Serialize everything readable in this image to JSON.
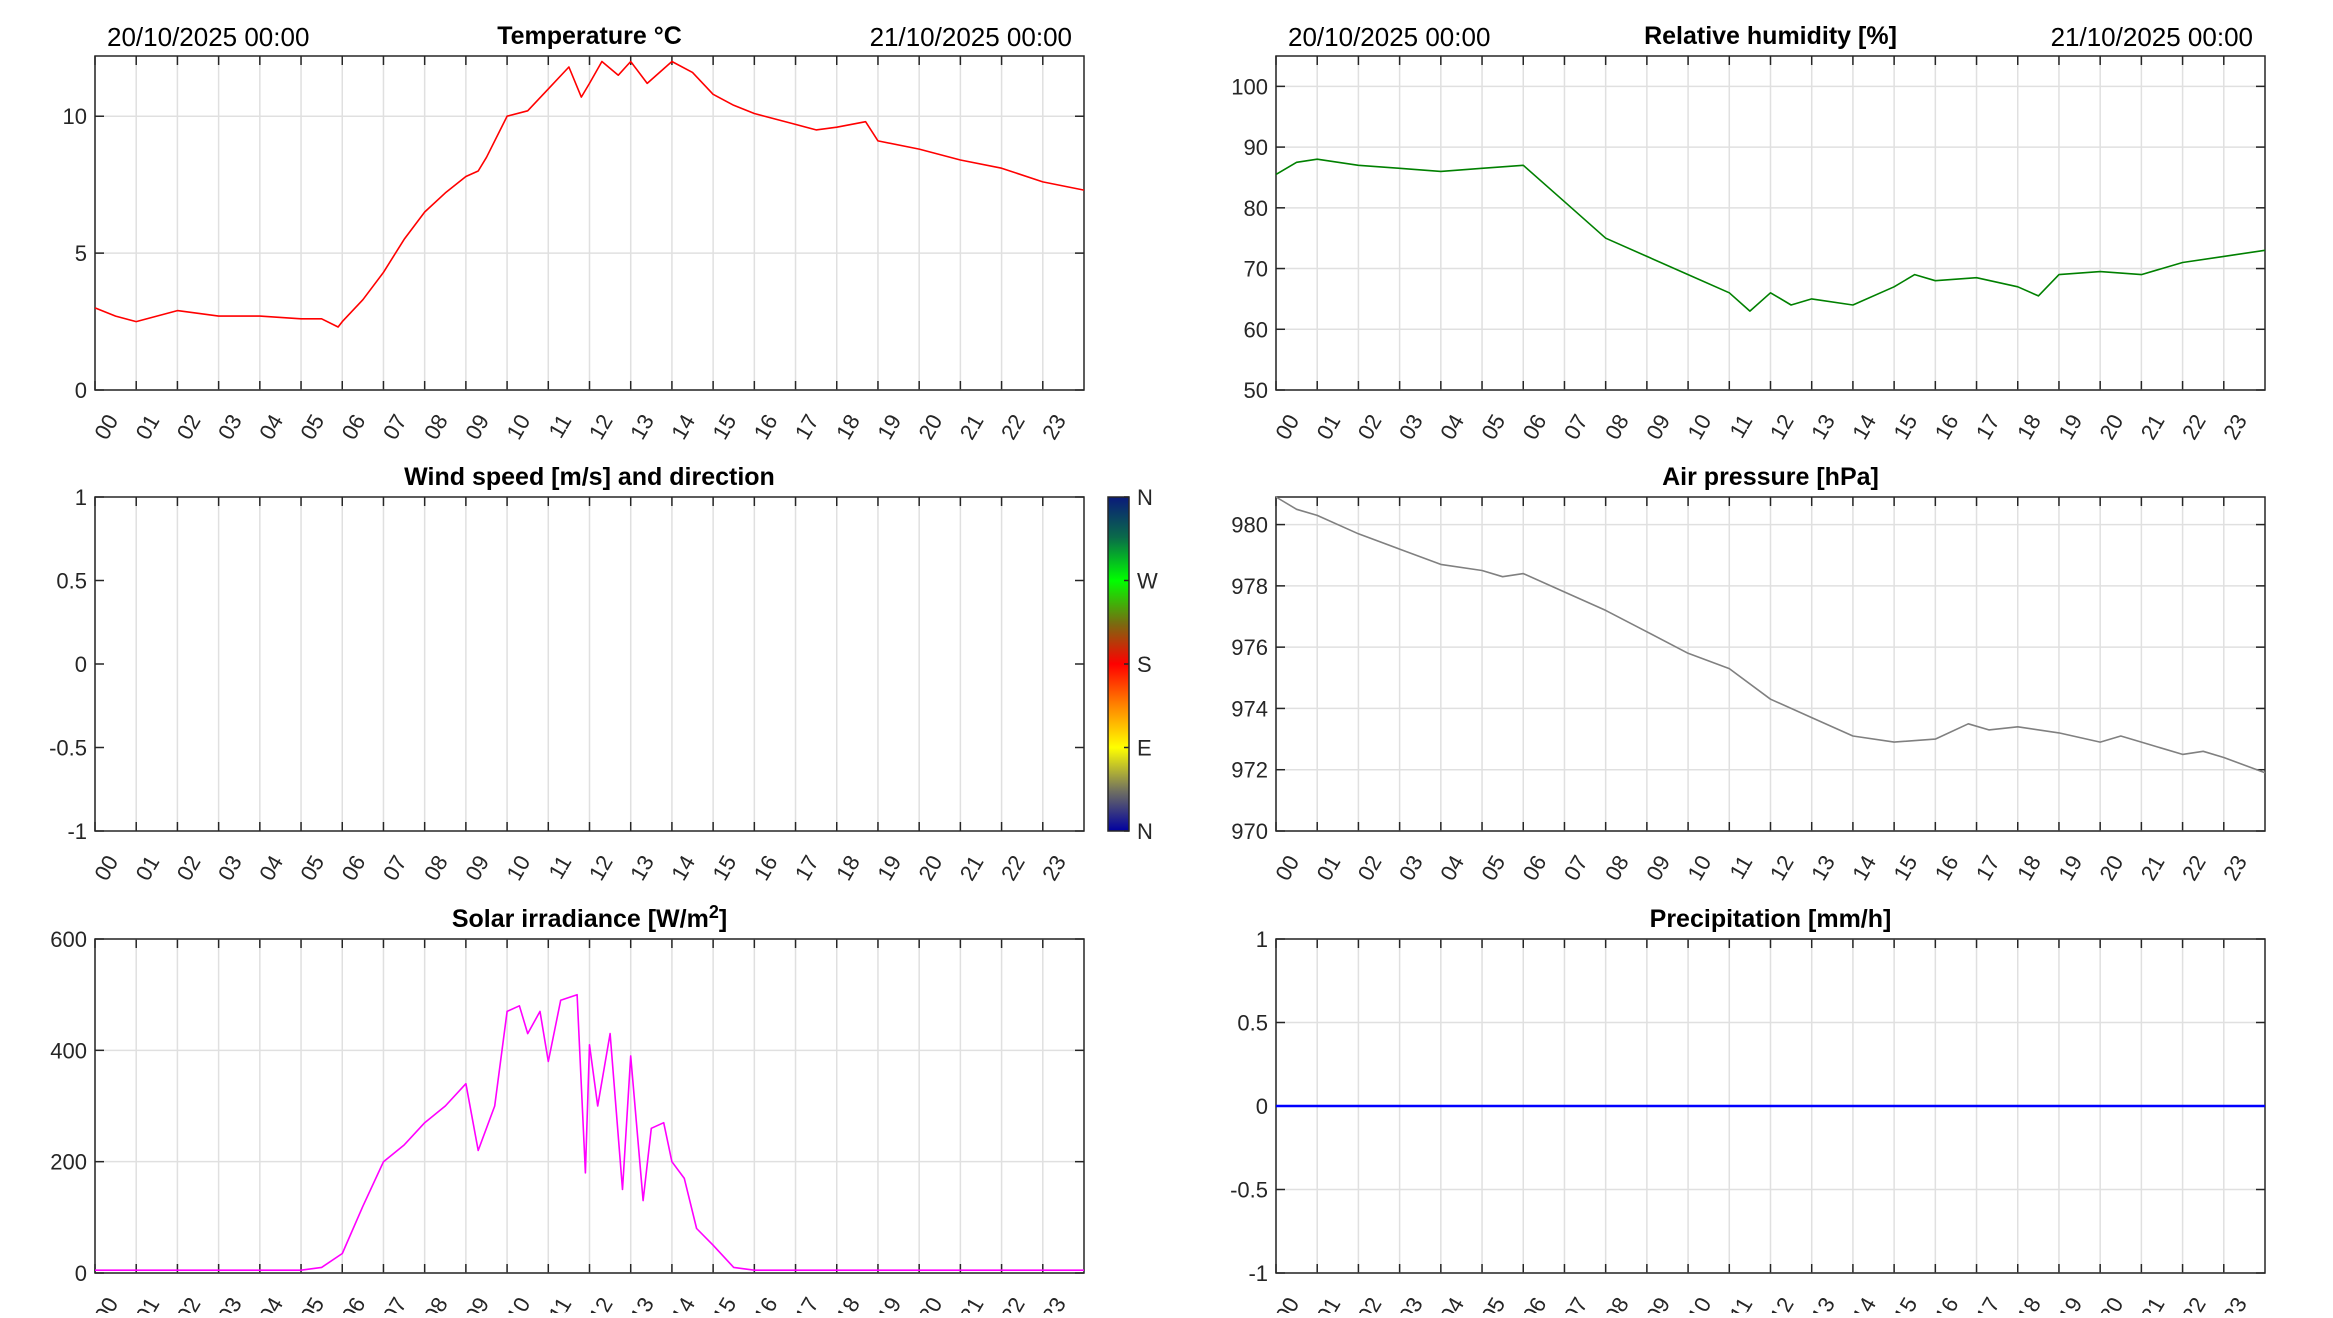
{
  "chart_data": [
    {
      "type": "line",
      "title": "Temperature °C",
      "date_start": "20/10/2025 00:00",
      "date_end": "21/10/2025 00:00",
      "color": "#ff0000",
      "xlim": [
        0,
        24
      ],
      "ylim": [
        0,
        12.2
      ],
      "yticks": [
        0,
        5,
        10
      ],
      "grid": true,
      "x": [
        0,
        0.5,
        1,
        1.5,
        2,
        3,
        4,
        5,
        5.5,
        5.9,
        6,
        6.5,
        7,
        7.5,
        8,
        8.5,
        9,
        9.3,
        9.5,
        10,
        10.5,
        11,
        11.5,
        11.8,
        12,
        12.3,
        12.7,
        13,
        13.4,
        14,
        14.5,
        15,
        15.5,
        16,
        17,
        17.5,
        18,
        18.7,
        19,
        20,
        21,
        22,
        23,
        24
      ],
      "y": [
        3.0,
        2.7,
        2.5,
        2.7,
        2.9,
        2.7,
        2.7,
        2.6,
        2.6,
        2.3,
        2.5,
        3.3,
        4.3,
        5.5,
        6.5,
        7.2,
        7.8,
        8.0,
        8.5,
        10.0,
        10.2,
        11.0,
        11.8,
        10.7,
        11.2,
        12.0,
        11.5,
        12.0,
        11.2,
        12.0,
        11.6,
        10.8,
        10.4,
        10.1,
        9.7,
        9.5,
        9.6,
        9.8,
        9.1,
        8.8,
        8.4,
        8.1,
        7.6,
        7.3
      ]
    },
    {
      "type": "line",
      "title": "Relative humidity [%]",
      "date_start": "20/10/2025 00:00",
      "date_end": "21/10/2025 00:00",
      "color": "#008000",
      "xlim": [
        0,
        24
      ],
      "ylim": [
        50,
        105
      ],
      "yticks": [
        50,
        60,
        70,
        80,
        90,
        100
      ],
      "grid": true,
      "x": [
        0,
        0.5,
        1,
        2,
        3,
        4,
        5,
        6,
        7,
        8,
        9,
        10,
        11,
        11.5,
        12,
        12.5,
        13,
        14,
        15,
        15.5,
        16,
        17,
        18,
        18.5,
        19,
        20,
        21,
        22,
        23,
        24
      ],
      "y": [
        85.5,
        87.5,
        88,
        87,
        86.5,
        86,
        86.5,
        87,
        81,
        75,
        72,
        69,
        66,
        63,
        66,
        64,
        65,
        64,
        67,
        69,
        68,
        68.5,
        67,
        65.5,
        69,
        69.5,
        69,
        71,
        72,
        73
      ]
    },
    {
      "type": "line",
      "title": "Wind speed [m/s] and direction",
      "color": "#000000",
      "xlim": [
        0,
        24
      ],
      "ylim": [
        -1,
        1
      ],
      "yticks": [
        -1,
        -0.5,
        0,
        0.5,
        1
      ],
      "grid": false,
      "x": [],
      "y": [],
      "colorbar": {
        "labels": [
          "N",
          "W",
          "S",
          "E",
          "N"
        ]
      }
    },
    {
      "type": "line",
      "title": "Air pressure [hPa]",
      "color": "#808080",
      "xlim": [
        0,
        24
      ],
      "ylim": [
        970,
        980.9
      ],
      "yticks": [
        970,
        972,
        974,
        976,
        978,
        980
      ],
      "grid": true,
      "x": [
        0,
        0.5,
        1,
        2,
        3,
        4,
        5,
        5.5,
        6,
        7,
        8,
        9,
        10,
        11,
        12,
        13,
        14,
        15,
        16,
        16.8,
        17.3,
        18,
        19,
        20,
        20.5,
        21,
        22,
        22.5,
        23,
        24
      ],
      "y": [
        980.9,
        980.5,
        980.3,
        979.7,
        979.2,
        978.7,
        978.5,
        978.3,
        978.4,
        977.8,
        977.2,
        976.5,
        975.8,
        975.3,
        974.3,
        973.7,
        973.1,
        972.9,
        973.0,
        973.5,
        973.3,
        973.4,
        973.2,
        972.9,
        973.1,
        972.9,
        972.5,
        972.6,
        972.4,
        971.9
      ]
    },
    {
      "type": "line",
      "title": "Solar irradiance [W/m",
      "title_sup": "2",
      "title_end": "]",
      "color": "#ff00ff",
      "xlim": [
        0,
        24
      ],
      "ylim": [
        0,
        600
      ],
      "yticks": [
        0,
        200,
        400,
        600
      ],
      "grid": true,
      "x": [
        0,
        5,
        5.5,
        6,
        6.5,
        7,
        7.5,
        8,
        8.5,
        9,
        9.3,
        9.7,
        10,
        10.3,
        10.5,
        10.8,
        11,
        11.3,
        11.7,
        11.9,
        12,
        12.2,
        12.5,
        12.8,
        13,
        13.3,
        13.5,
        13.8,
        14,
        14.3,
        14.6,
        15,
        15.5,
        16,
        24
      ],
      "y": [
        5,
        5,
        10,
        35,
        120,
        200,
        230,
        270,
        300,
        340,
        220,
        300,
        470,
        480,
        430,
        470,
        380,
        490,
        500,
        180,
        410,
        300,
        430,
        150,
        390,
        130,
        260,
        270,
        200,
        170,
        80,
        50,
        10,
        5,
        5
      ]
    },
    {
      "type": "line",
      "title": "Precipitation [mm/h]",
      "color": "#0000ff",
      "xlim": [
        0,
        24
      ],
      "ylim": [
        -1,
        1
      ],
      "yticks": [
        -1,
        -0.5,
        0,
        0.5,
        1
      ],
      "grid": true,
      "x": [
        0,
        24
      ],
      "y": [
        0,
        0
      ]
    }
  ],
  "xtick_labels": [
    "00",
    "01",
    "02",
    "03",
    "04",
    "05",
    "06",
    "07",
    "08",
    "09",
    "10",
    "11",
    "12",
    "13",
    "14",
    "15",
    "16",
    "17",
    "18",
    "19",
    "20",
    "21",
    "22",
    "23"
  ]
}
